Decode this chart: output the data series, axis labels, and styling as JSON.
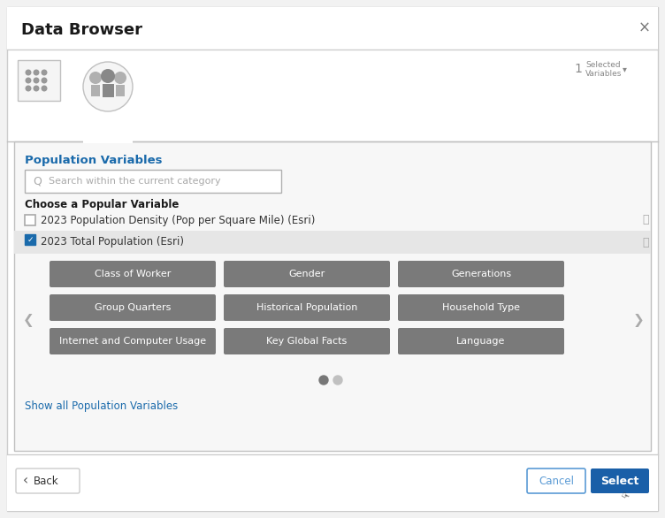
{
  "title": "Data Browser",
  "close_x": "×",
  "selected_variables_count": "1",
  "selected_variables_line1": "Selected",
  "selected_variables_line2": "Variables",
  "section_title": "Population Variables",
  "search_placeholder": "Search within the current category",
  "choose_label": "Choose a Popular Variable",
  "checkbox1_label": "2023 Population Density (Pop per Square Mile) (Esri)",
  "checkbox2_label": "2023 Total Population (Esri)",
  "grid_buttons": [
    [
      "Class of Worker",
      "Gender",
      "Generations"
    ],
    [
      "Group Quarters",
      "Historical Population",
      "Household Type"
    ],
    [
      "Internet and Computer Usage",
      "Key Global Facts",
      "Language"
    ]
  ],
  "show_all_link": "Show all Population Variables",
  "back_label": "Back",
  "cancel_label": "Cancel",
  "select_label": "Select",
  "outer_bg": "#f2f2f2",
  "dialog_bg": "#ffffff",
  "header_bg": "#ffffff",
  "panel_bg": "#f7f7f7",
  "btn_gray": "#7a7a7a",
  "btn_gray_light": "#888888",
  "btn_blue": "#1a5fa8",
  "btn_text_color": "#ffffff",
  "highlight_row_bg": "#e6e6e6",
  "search_border": "#b0b0b0",
  "title_color": "#1a1a1a",
  "section_title_color": "#1a6aab",
  "link_color": "#1a6aab",
  "checkbox_blue": "#1a6aab",
  "nav_arrow_color": "#aaaaaa",
  "dot_active": "#777777",
  "dot_inactive": "#c0c0c0",
  "border_color": "#cccccc",
  "tab_border": "#c0c0c0",
  "info_color": "#aaaaaa",
  "cancel_border": "#5b9bd5",
  "cancel_text": "#5b9bd5"
}
